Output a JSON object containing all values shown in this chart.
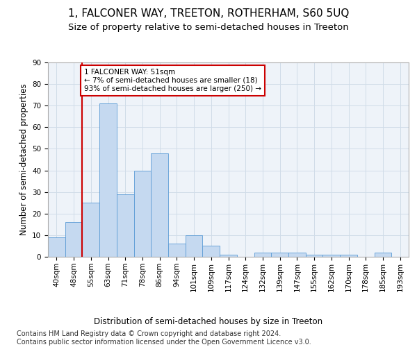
{
  "title": "1, FALCONER WAY, TREETON, ROTHERHAM, S60 5UQ",
  "subtitle": "Size of property relative to semi-detached houses in Treeton",
  "xlabel": "Distribution of semi-detached houses by size in Treeton",
  "ylabel": "Number of semi-detached properties",
  "categories": [
    "40sqm",
    "48sqm",
    "55sqm",
    "63sqm",
    "71sqm",
    "78sqm",
    "86sqm",
    "94sqm",
    "101sqm",
    "109sqm",
    "117sqm",
    "124sqm",
    "132sqm",
    "139sqm",
    "147sqm",
    "155sqm",
    "162sqm",
    "170sqm",
    "178sqm",
    "185sqm",
    "193sqm"
  ],
  "values": [
    9,
    16,
    25,
    71,
    29,
    40,
    48,
    6,
    10,
    5,
    1,
    0,
    2,
    2,
    2,
    1,
    1,
    1,
    0,
    2,
    0
  ],
  "bar_color": "#c5d9f0",
  "bar_edge_color": "#5b9bd5",
  "grid_color": "#d0dce8",
  "background_color": "#eef3f9",
  "vline_x_index": 1.5,
  "vline_color": "#cc0000",
  "annotation_text": "1 FALCONER WAY: 51sqm\n← 7% of semi-detached houses are smaller (18)\n93% of semi-detached houses are larger (250) →",
  "annotation_box_color": "#ffffff",
  "annotation_box_edge": "#cc0000",
  "ylim": [
    0,
    90
  ],
  "yticks": [
    0,
    10,
    20,
    30,
    40,
    50,
    60,
    70,
    80,
    90
  ],
  "footer_line1": "Contains HM Land Registry data © Crown copyright and database right 2024.",
  "footer_line2": "Contains public sector information licensed under the Open Government Licence v3.0.",
  "title_fontsize": 11,
  "subtitle_fontsize": 9.5,
  "axis_label_fontsize": 8.5,
  "tick_fontsize": 7.5,
  "footer_fontsize": 7,
  "annotation_fontsize": 7.5
}
